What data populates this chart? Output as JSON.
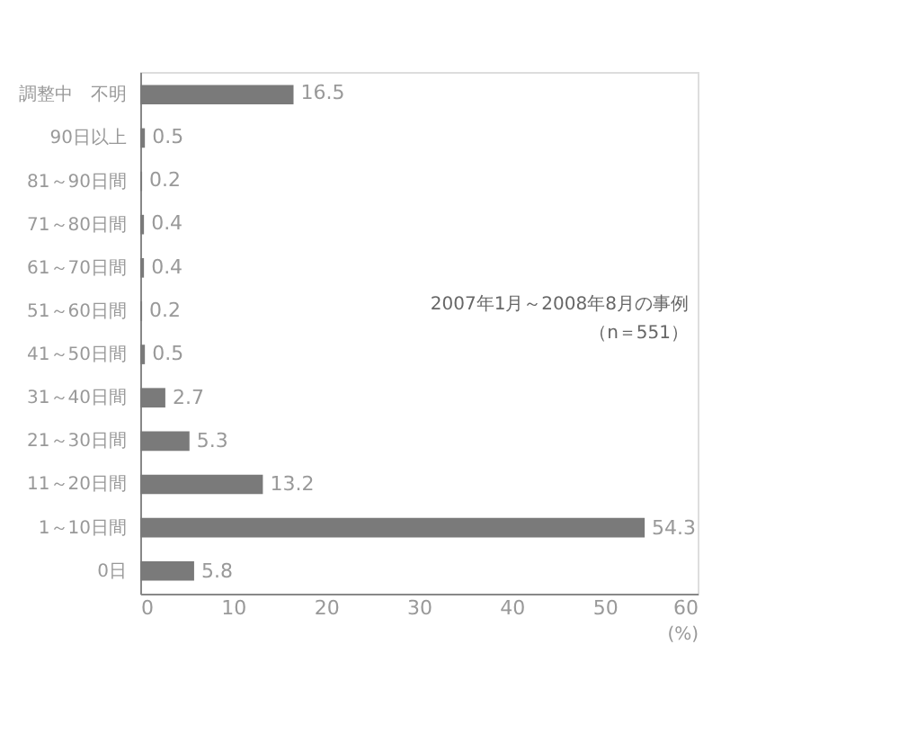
{
  "chart_data": {
    "type": "bar",
    "orientation": "horizontal",
    "categories": [
      "調整中　不明",
      "90日以上",
      "81～90日間",
      "71～80日間",
      "61～70日間",
      "51～60日間",
      "41～50日間",
      "31～40日間",
      "21～30日間",
      "11～20日間",
      "1～10日間",
      "0日"
    ],
    "values": [
      16.5,
      0.5,
      0.2,
      0.4,
      0.4,
      0.2,
      0.5,
      2.7,
      5.3,
      13.2,
      54.3,
      5.8
    ],
    "color": "#7a7a7a",
    "data_labels": true,
    "xlim": [
      0,
      60
    ],
    "xticks": [
      0,
      10,
      20,
      30,
      40,
      50,
      60
    ],
    "xlabel": "(%)",
    "grid": false,
    "annotations": [
      "2007年1月～2008年8月の事例",
      "（n＝551）"
    ]
  }
}
